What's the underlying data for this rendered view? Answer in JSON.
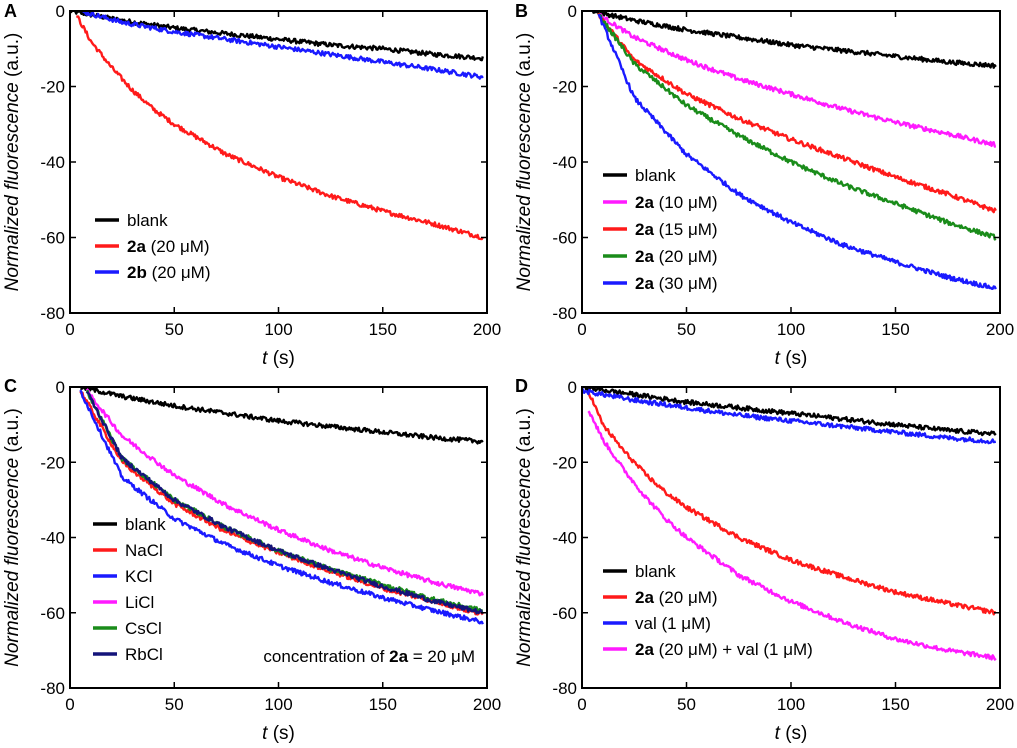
{
  "figure": {
    "panels": [
      {
        "letter": "A",
        "xlabel_var": "t",
        "xlabel_unit": " (s)",
        "ylabel": "Normalized fluorescence",
        "ylabel_unit": " (a.u.)",
        "legend": [
          {
            "bold": "",
            "text": "blank",
            "color": "#000000"
          },
          {
            "bold": "2a",
            "text": "  (20 μM)",
            "color": "#ff1a1a"
          },
          {
            "bold": "2b",
            "text": " (20 μM)",
            "color": "#1a1aff"
          }
        ],
        "note": null
      },
      {
        "letter": "B",
        "xlabel_var": "t",
        "xlabel_unit": " (s)",
        "ylabel": "Normalized fluorescence",
        "ylabel_unit": " (a.u.)",
        "legend": [
          {
            "bold": "",
            "text": "blank",
            "color": "#000000"
          },
          {
            "bold": "2a",
            "text": " (10 μM)",
            "color": "#ff1aff"
          },
          {
            "bold": "2a",
            "text": " (15 μM)",
            "color": "#ff1a1a"
          },
          {
            "bold": "2a",
            "text": " (20 μM)",
            "color": "#1a8c1a"
          },
          {
            "bold": "2a",
            "text": " (30 μM)",
            "color": "#1a1aff"
          }
        ],
        "note": null
      },
      {
        "letter": "C",
        "xlabel_var": "t",
        "xlabel_unit": " (s)",
        "ylabel": "Normalized fluorescence",
        "ylabel_unit": " (a.u.)",
        "legend": [
          {
            "bold": "",
            "text": "blank",
            "color": "#000000"
          },
          {
            "bold": "",
            "text": "NaCl",
            "color": "#ff1a1a"
          },
          {
            "bold": "",
            "text": "KCl",
            "color": "#1a1aff"
          },
          {
            "bold": "",
            "text": "LiCl",
            "color": "#ff1aff"
          },
          {
            "bold": "",
            "text": "CsCl",
            "color": "#1a8c1a"
          },
          {
            "bold": "",
            "text": "RbCl",
            "color": "#14147a"
          }
        ],
        "note": {
          "pre": "concentration of ",
          "bold": "2a",
          "post": " = 20 μM"
        }
      },
      {
        "letter": "D",
        "xlabel_var": "t",
        "xlabel_unit": " (s)",
        "ylabel": "Normalized fluorescence",
        "ylabel_unit": " (a.u.)",
        "legend": [
          {
            "bold": "",
            "text": "blank",
            "color": "#000000"
          },
          {
            "bold": "2a",
            "text": "  (20 μM)",
            "color": "#ff1a1a"
          },
          {
            "bold": "",
            "text": "val (1 μM)",
            "color": "#1a1aff"
          },
          {
            "bold": "2a",
            "text": "  (20 μM) + val (1 μM)",
            "color": "#ff1aff"
          }
        ],
        "note": null
      }
    ]
  },
  "chart_data": [
    {
      "type": "line",
      "title": "A",
      "xlabel": "t (s)",
      "ylabel": "Normalized fluorescence (a.u.)",
      "xlim": [
        0,
        200
      ],
      "ylim": [
        -80,
        0
      ],
      "xticks": [
        0,
        50,
        100,
        150,
        200
      ],
      "yticks": [
        0,
        -20,
        -40,
        -60,
        -80
      ],
      "series": [
        {
          "name": "blank",
          "color": "#000000",
          "x": [
            0,
            25,
            50,
            75,
            100,
            125,
            150,
            175,
            198
          ],
          "y": [
            0,
            -2.5,
            -4.5,
            -6,
            -7.5,
            -9,
            -10,
            -11.5,
            -12.5
          ]
        },
        {
          "name": "2a (20 μM)",
          "color": "#ff1a1a",
          "x": [
            3,
            10,
            20,
            30,
            40,
            50,
            75,
            100,
            125,
            150,
            175,
            198
          ],
          "y": [
            -1,
            -8,
            -15,
            -21,
            -26,
            -30,
            -38,
            -44,
            -49,
            -53,
            -56.5,
            -60
          ]
        },
        {
          "name": "2b (20 μM)",
          "color": "#1a1aff",
          "x": [
            5,
            25,
            50,
            75,
            100,
            125,
            150,
            175,
            198
          ],
          "y": [
            0,
            -3,
            -5.5,
            -7.5,
            -9.5,
            -11.5,
            -13.5,
            -15.5,
            -17.5
          ]
        }
      ]
    },
    {
      "type": "line",
      "title": "B",
      "xlabel": "t (s)",
      "ylabel": "Normalized fluorescence (a.u.)",
      "xlim": [
        0,
        200
      ],
      "ylim": [
        -80,
        0
      ],
      "xticks": [
        0,
        50,
        100,
        150,
        200
      ],
      "yticks": [
        0,
        -20,
        -40,
        -60,
        -80
      ],
      "series": [
        {
          "name": "blank",
          "color": "#000000",
          "x": [
            5,
            25,
            50,
            75,
            100,
            125,
            150,
            175,
            198
          ],
          "y": [
            0,
            -2.5,
            -5,
            -7,
            -9,
            -10.5,
            -12,
            -13.5,
            -14.5
          ]
        },
        {
          "name": "2a (10 μM)",
          "color": "#ff1aff",
          "x": [
            8,
            25,
            50,
            75,
            100,
            125,
            150,
            175,
            198
          ],
          "y": [
            -1,
            -7,
            -13,
            -18,
            -22,
            -26,
            -29.5,
            -32.5,
            -35.5
          ]
        },
        {
          "name": "2a (15 μM)",
          "color": "#ff1a1a",
          "x": [
            8,
            25,
            50,
            75,
            100,
            125,
            150,
            175,
            198
          ],
          "y": [
            -1,
            -13,
            -22,
            -28.5,
            -34,
            -39,
            -44,
            -48.5,
            -53
          ]
        },
        {
          "name": "2a (20 μM)",
          "color": "#1a8c1a",
          "x": [
            8,
            25,
            50,
            75,
            100,
            125,
            150,
            175,
            198
          ],
          "y": [
            -1,
            -14,
            -25,
            -33,
            -40,
            -46,
            -51,
            -56,
            -60
          ]
        },
        {
          "name": "2a (30 μM)",
          "color": "#1a1aff",
          "x": [
            8,
            25,
            50,
            75,
            100,
            125,
            150,
            175,
            198
          ],
          "y": [
            -1,
            -23,
            -38,
            -48.5,
            -56,
            -62,
            -66.5,
            -70.5,
            -73.5
          ]
        }
      ]
    },
    {
      "type": "line",
      "title": "C",
      "xlabel": "t (s)",
      "ylabel": "Normalized fluorescence (a.u.)",
      "xlim": [
        0,
        200
      ],
      "ylim": [
        -80,
        0
      ],
      "xticks": [
        0,
        50,
        100,
        150,
        200
      ],
      "yticks": [
        0,
        -20,
        -40,
        -60,
        -80
      ],
      "series": [
        {
          "name": "blank",
          "color": "#000000",
          "x": [
            5,
            25,
            50,
            75,
            100,
            125,
            150,
            175,
            198
          ],
          "y": [
            0,
            -2.5,
            -5,
            -7,
            -9,
            -10.5,
            -12,
            -13.5,
            -14.5
          ]
        },
        {
          "name": "NaCl",
          "color": "#ff1a1a",
          "x": [
            5,
            25,
            50,
            75,
            100,
            125,
            150,
            175,
            198
          ],
          "y": [
            -1,
            -20,
            -31,
            -38.5,
            -44,
            -49,
            -53.5,
            -57,
            -60.5
          ]
        },
        {
          "name": "KCl",
          "color": "#1a1aff",
          "x": [
            5,
            25,
            50,
            75,
            100,
            125,
            150,
            175,
            198
          ],
          "y": [
            -1,
            -24,
            -35,
            -42,
            -47.5,
            -52,
            -56,
            -59.5,
            -62.5
          ]
        },
        {
          "name": "LiCl",
          "color": "#ff1aff",
          "x": [
            8,
            25,
            50,
            75,
            100,
            125,
            150,
            175,
            198
          ],
          "y": [
            -1,
            -13,
            -23.5,
            -31.5,
            -38,
            -43.5,
            -48,
            -52,
            -55
          ]
        },
        {
          "name": "CsCl",
          "color": "#1a8c1a",
          "x": [
            8,
            25,
            50,
            75,
            100,
            125,
            150,
            175,
            198
          ],
          "y": [
            -1,
            -19,
            -30,
            -37.5,
            -43.5,
            -48.5,
            -52.5,
            -56.5,
            -59.5
          ]
        },
        {
          "name": "RbCl",
          "color": "#14147a",
          "x": [
            8,
            25,
            50,
            75,
            100,
            125,
            150,
            175,
            198
          ],
          "y": [
            -1,
            -19,
            -30,
            -37.5,
            -43.5,
            -48.5,
            -53,
            -57,
            -60
          ]
        }
      ]
    },
    {
      "type": "line",
      "title": "D",
      "xlabel": "t (s)",
      "ylabel": "Normalized fluorescence (a.u.)",
      "xlim": [
        0,
        200
      ],
      "ylim": [
        -80,
        0
      ],
      "xticks": [
        0,
        50,
        100,
        150,
        200
      ],
      "yticks": [
        0,
        -20,
        -40,
        -60,
        -80
      ],
      "series": [
        {
          "name": "blank",
          "color": "#000000",
          "x": [
            0,
            25,
            50,
            75,
            100,
            125,
            150,
            175,
            198
          ],
          "y": [
            0,
            -2,
            -4,
            -5.5,
            -7,
            -8.5,
            -10,
            -11.5,
            -12.5
          ]
        },
        {
          "name": "2a (20 μM)",
          "color": "#ff1a1a",
          "x": [
            3,
            10,
            20,
            30,
            40,
            50,
            75,
            100,
            125,
            150,
            175,
            198
          ],
          "y": [
            -1,
            -10,
            -17,
            -23,
            -28,
            -32,
            -40,
            -46,
            -50.5,
            -54.5,
            -57.5,
            -60
          ]
        },
        {
          "name": "val (1 μM)",
          "color": "#1a1aff",
          "x": [
            0,
            25,
            50,
            75,
            100,
            125,
            150,
            175,
            198
          ],
          "y": [
            -1,
            -3.5,
            -5.5,
            -7.5,
            -9,
            -10.5,
            -12,
            -13.5,
            -14.5
          ]
        },
        {
          "name": "2a (20 μM) + val (1 μM)",
          "color": "#ff1aff",
          "x": [
            3,
            10,
            20,
            30,
            40,
            50,
            75,
            100,
            125,
            150,
            175,
            198
          ],
          "y": [
            -6,
            -14,
            -22,
            -29,
            -35,
            -40,
            -50,
            -57,
            -62.5,
            -67,
            -70,
            -72
          ]
        }
      ]
    }
  ]
}
